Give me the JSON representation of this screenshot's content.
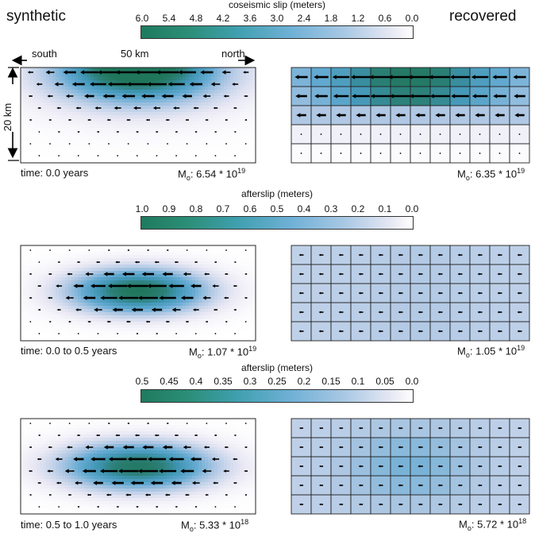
{
  "headers": {
    "left": "synthetic",
    "right": "recovered"
  },
  "colorbars": [
    {
      "title": "coseismic slip (meters)",
      "ticks": [
        "6.0",
        "5.4",
        "4.8",
        "4.2",
        "3.6",
        "3.0",
        "2.4",
        "1.8",
        "1.2",
        "0.6",
        "0.0"
      ]
    },
    {
      "title": "afterslip (meters)",
      "ticks": [
        "1.0",
        "0.9",
        "0.8",
        "0.7",
        "0.6",
        "0.5",
        "0.4",
        "0.3",
        "0.2",
        "0.1",
        "0.0"
      ]
    },
    {
      "title": "afterslip (meters)",
      "ticks": [
        "0.5",
        "0.45",
        "0.4",
        "0.35",
        "0.3",
        "0.25",
        "0.2",
        "0.15",
        "0.1",
        "0.05",
        "0.0"
      ]
    }
  ],
  "dims": {
    "south": "south",
    "north": "north",
    "length": "50 km",
    "depth": "20 km"
  },
  "rows": [
    {
      "time": "time: 0.0 years",
      "synthetic_moment": {
        "prefix": "M",
        "sub": "o",
        "value": ": 6.54 * 10",
        "exp": "19"
      },
      "recovered_moment": {
        "prefix": "M",
        "sub": "o",
        "value": ": 6.35 * 10",
        "exp": "19"
      }
    },
    {
      "time": "time: 0.0 to 0.5 years",
      "synthetic_moment": {
        "prefix": "M",
        "sub": "o",
        "value": ": 1.07 * 10",
        "exp": "19"
      },
      "recovered_moment": {
        "prefix": "M",
        "sub": "o",
        "value": ": 1.05 * 10",
        "exp": "19"
      }
    },
    {
      "time": "time: 0.5 to 1.0 years",
      "synthetic_moment": {
        "prefix": "M",
        "sub": "o",
        "value": ": 5.33 * 10",
        "exp": "18"
      },
      "recovered_moment": {
        "prefix": "M",
        "sub": "o",
        "value": ": 5.72 * 10",
        "exp": "18"
      }
    }
  ],
  "colors": {
    "dark": "#1f7a5e",
    "mid": "#4aa3c0",
    "light": "#dcdcee",
    "white": "#ffffff"
  }
}
